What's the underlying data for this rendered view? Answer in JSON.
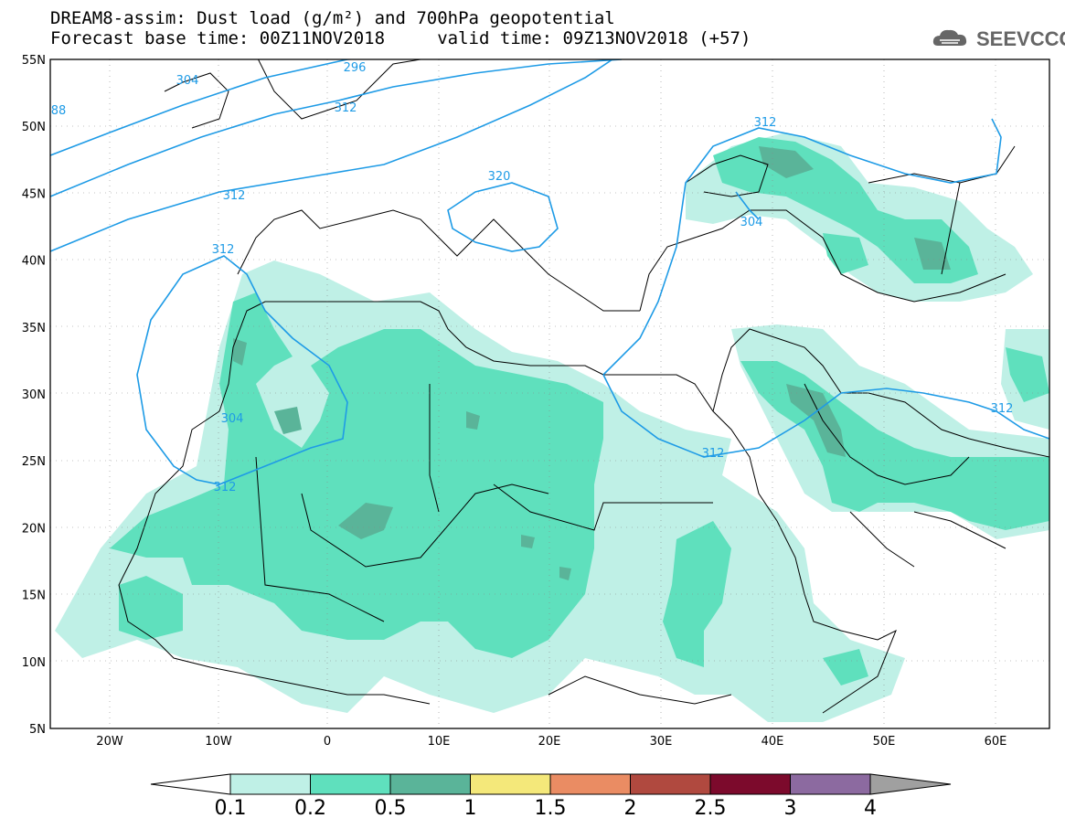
{
  "title_line1": "DREAM8-assim: Dust load (g/m²) and 700hPa geopotential",
  "title_line2": "Forecast base time: 00Z11NOV2018     valid time: 09Z13NOV2018 (+57)",
  "logo": {
    "text": "SEEVCCC",
    "icon": "cloud-icon",
    "color": "#666666"
  },
  "axes": {
    "lon_range": [
      -25,
      65
    ],
    "lat_range": [
      5,
      55
    ],
    "lat_labels": [
      "55N",
      "50N",
      "45N",
      "40N",
      "35N",
      "30N",
      "25N",
      "20N",
      "15N",
      "10N",
      "5N"
    ],
    "lon_labels": [
      "20W",
      "10W",
      "0",
      "10E",
      "20E",
      "30E",
      "40E",
      "50E",
      "60E"
    ]
  },
  "contour_labels": [
    "296",
    "304",
    "312",
    "312",
    "312",
    "320",
    "312",
    "304",
    "304",
    "312",
    "312",
    "312",
    "88"
  ],
  "colorbar": {
    "levels": [
      "0.1",
      "0.2",
      "0.5",
      "1",
      "1.5",
      "2",
      "2.5",
      "3",
      "4"
    ],
    "colors": [
      "#ffffff",
      "#bff0e6",
      "#5fe0bd",
      "#5ab499",
      "#f4e87a",
      "#ea8c63",
      "#b0493f",
      "#7c0a2c",
      "#8c6aa0",
      "#a0a0a0"
    ]
  },
  "dust_colors": {
    "light": "#bff0e6",
    "medium": "#5fe0bd",
    "dark": "#5ab499"
  },
  "contour_color": "#1e9be6"
}
